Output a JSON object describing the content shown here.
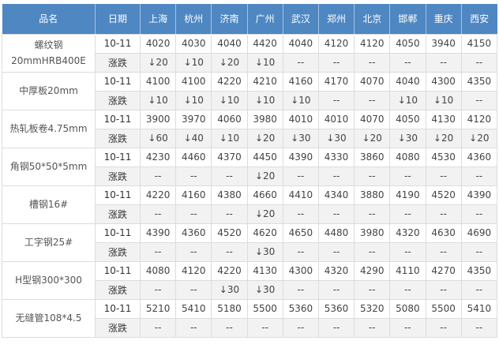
{
  "colors": {
    "header_bg": "#4e87c2",
    "header_text": "#ffffff",
    "down_green": "#33cc33",
    "change_row_bg": "#f2f2f2",
    "border": "#dcdcdc"
  },
  "chart_data": {
    "type": "table",
    "columns": [
      "品名",
      "日期",
      "上海",
      "杭州",
      "济南",
      "广州",
      "武汉",
      "郑州",
      "北京",
      "邯郸",
      "重庆",
      "西安"
    ],
    "change_row_label": "涨跌",
    "down_arrow": "↓",
    "empty_change": "--",
    "rows": [
      {
        "product": "螺纹钢 20mmHRB400E",
        "product_lines": [
          "螺纹钢",
          "20mmHRB400E"
        ],
        "date": "10-11",
        "prices": [
          4020,
          4030,
          4040,
          4420,
          4040,
          4120,
          4120,
          4050,
          3940,
          4150
        ],
        "changes": [
          -20,
          -10,
          -20,
          -10,
          null,
          null,
          null,
          null,
          null,
          null
        ]
      },
      {
        "product": "中厚板20mm",
        "product_lines": [
          "中厚板20mm"
        ],
        "date": "10-11",
        "prices": [
          4100,
          4100,
          4220,
          4210,
          4160,
          4170,
          4070,
          4040,
          4300,
          4350
        ],
        "changes": [
          -10,
          -10,
          -10,
          -10,
          -10,
          null,
          null,
          -10,
          -10,
          null
        ]
      },
      {
        "product": "热轧板卷4.75mm",
        "product_lines": [
          "热轧板卷4.75mm"
        ],
        "date": "10-11",
        "prices": [
          3900,
          3970,
          4060,
          3980,
          4010,
          4010,
          4070,
          4050,
          4130,
          4120
        ],
        "changes": [
          -60,
          -40,
          -10,
          -20,
          -30,
          -30,
          -20,
          -30,
          -20,
          -20
        ]
      },
      {
        "product": "角钢50*50*5mm",
        "product_lines": [
          "角钢50*50*5mm"
        ],
        "date": "10-11",
        "prices": [
          4230,
          4460,
          4370,
          4450,
          4390,
          4330,
          3860,
          4080,
          4530,
          4360
        ],
        "changes": [
          null,
          null,
          null,
          -20,
          null,
          null,
          null,
          null,
          null,
          null
        ]
      },
      {
        "product": "槽钢16#",
        "product_lines": [
          "槽钢16#"
        ],
        "date": "10-11",
        "prices": [
          4220,
          4160,
          4380,
          4660,
          4410,
          4340,
          3880,
          4190,
          4520,
          4390
        ],
        "changes": [
          null,
          null,
          null,
          -20,
          null,
          null,
          null,
          null,
          null,
          null
        ]
      },
      {
        "product": "工字钢25#",
        "product_lines": [
          "工字钢25#"
        ],
        "date": "10-11",
        "prices": [
          4390,
          4360,
          4520,
          4620,
          4650,
          4480,
          3980,
          4320,
          4630,
          4690
        ],
        "changes": [
          null,
          null,
          null,
          -30,
          null,
          null,
          null,
          null,
          null,
          null
        ]
      },
      {
        "product": "H型钢300*300",
        "product_lines": [
          "H型钢300*300"
        ],
        "date": "10-11",
        "prices": [
          4080,
          4120,
          4220,
          4130,
          4300,
          4320,
          4290,
          4110,
          4270,
          4350
        ],
        "changes": [
          null,
          null,
          -30,
          -30,
          null,
          null,
          null,
          null,
          null,
          null
        ]
      },
      {
        "product": "无缝管108*4.5",
        "product_lines": [
          "无缝管108*4.5"
        ],
        "date": "10-11",
        "prices": [
          5210,
          5410,
          5180,
          5500,
          5360,
          5360,
          5320,
          5080,
          5500,
          5410
        ],
        "changes": [
          null,
          null,
          null,
          null,
          null,
          null,
          null,
          null,
          null,
          null
        ]
      }
    ]
  }
}
